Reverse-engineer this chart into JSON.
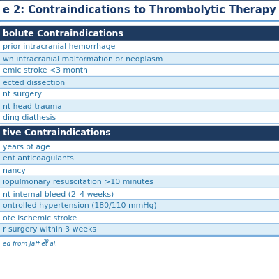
{
  "title": "e 2: Contraindications to Thrombolytic Therapy",
  "title_color": "#1a3a6b",
  "title_fontsize": 10.5,
  "header_bg": "#1e3a5f",
  "header_text_color": "#ffffff",
  "row_text_color": "#2471a3",
  "row_bg_odd": "#ffffff",
  "row_bg_even": "#ddeef8",
  "divider_color": "#5b9bd5",
  "footer_text": "ed from Jaff et al.",
  "footer_superscript": "39",
  "top_line_color": "#1e3a5f",
  "sections": [
    {
      "header": "bolute Contraindications",
      "rows": [
        "prior intracranial hemorrhage",
        "wn intracranial malformation or neoplasm",
        "emic stroke <3 month",
        "ected dissection",
        "nt surgery",
        "nt head trauma",
        "ding diathesis"
      ]
    },
    {
      "header": "tive Contraindications",
      "rows": [
        "years of age",
        "ent anticoagulants",
        "nancy",
        "iopulmonary resuscitation >10 minutes",
        "nt internal bleed (2–4 weeks)",
        "ontrolled hypertension (180/110 mmHg)",
        "ote ischemic stroke",
        "r surgery within 3 weeks"
      ]
    }
  ]
}
